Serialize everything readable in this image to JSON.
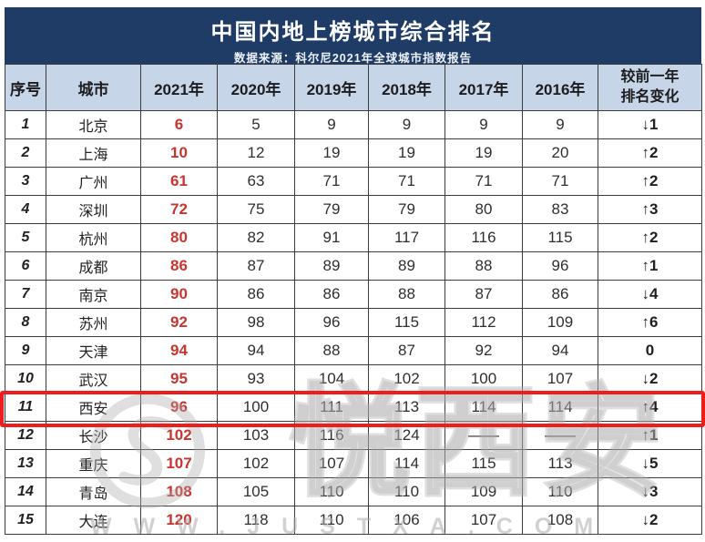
{
  "header": {
    "title": "中国内地上榜城市综合排名",
    "subtitle": "数据来源：科尔尼2021年全球城市指数报告"
  },
  "chart_data": {
    "type": "table",
    "columns": [
      {
        "label": "序号"
      },
      {
        "label": "城市"
      },
      {
        "label": "2021年"
      },
      {
        "label": "2020年"
      },
      {
        "label": "2019年"
      },
      {
        "label": "2018年"
      },
      {
        "label": "2017年"
      },
      {
        "label": "2016年"
      },
      {
        "lines": [
          "较前一年",
          "排名变化"
        ]
      }
    ],
    "rows": [
      {
        "index": "1",
        "city": "北京",
        "values": [
          "6",
          "5",
          "9",
          "9",
          "9",
          "9"
        ],
        "change": "↓1",
        "highlighted": false
      },
      {
        "index": "2",
        "city": "上海",
        "values": [
          "10",
          "12",
          "19",
          "19",
          "19",
          "20"
        ],
        "change": "↑2",
        "highlighted": false
      },
      {
        "index": "3",
        "city": "广州",
        "values": [
          "61",
          "63",
          "71",
          "71",
          "71",
          "71"
        ],
        "change": "↑2",
        "highlighted": false
      },
      {
        "index": "4",
        "city": "深圳",
        "values": [
          "72",
          "75",
          "79",
          "79",
          "80",
          "83"
        ],
        "change": "↑3",
        "highlighted": false
      },
      {
        "index": "5",
        "city": "杭州",
        "values": [
          "80",
          "82",
          "91",
          "117",
          "116",
          "115"
        ],
        "change": "↑2",
        "highlighted": false
      },
      {
        "index": "6",
        "city": "成都",
        "values": [
          "86",
          "87",
          "89",
          "89",
          "88",
          "96"
        ],
        "change": "↑1",
        "highlighted": false
      },
      {
        "index": "7",
        "city": "南京",
        "values": [
          "90",
          "86",
          "86",
          "88",
          "87",
          "86"
        ],
        "change": "↓4",
        "highlighted": false
      },
      {
        "index": "8",
        "city": "苏州",
        "values": [
          "92",
          "98",
          "96",
          "115",
          "112",
          "109"
        ],
        "change": "↑6",
        "highlighted": false
      },
      {
        "index": "9",
        "city": "天津",
        "values": [
          "94",
          "94",
          "88",
          "87",
          "92",
          "94"
        ],
        "change": "0",
        "highlighted": false
      },
      {
        "index": "10",
        "city": "武汉",
        "values": [
          "95",
          "93",
          "104",
          "102",
          "100",
          "107"
        ],
        "change": "↓2",
        "highlighted": false
      },
      {
        "index": "11",
        "city": "西安",
        "values": [
          "96",
          "100",
          "111",
          "113",
          "114",
          "114"
        ],
        "change": "↑4",
        "highlighted": true
      },
      {
        "index": "12",
        "city": "长沙",
        "values": [
          "102",
          "103",
          "116",
          "124",
          "——",
          "——"
        ],
        "change": "↑1",
        "highlighted": false
      },
      {
        "index": "13",
        "city": "重庆",
        "values": [
          "107",
          "102",
          "107",
          "114",
          "115",
          "113"
        ],
        "change": "↓5",
        "highlighted": false
      },
      {
        "index": "14",
        "city": "青岛",
        "values": [
          "108",
          "105",
          "110",
          "110",
          "109",
          "110"
        ],
        "change": "↓3",
        "highlighted": false
      },
      {
        "index": "15",
        "city": "大连",
        "values": [
          "120",
          "118",
          "110",
          "106",
          "107",
          "108"
        ],
        "change": "↓2",
        "highlighted": false
      }
    ]
  },
  "watermark": {
    "brand": "悦西安",
    "url": "WWW.JUSTXA.COM"
  },
  "icons": {
    "up-arrow": "↑",
    "down-arrow": "↓"
  },
  "colors": {
    "banner_bg": "#1e3c66",
    "banner_text": "#ffffff",
    "column_header_bg": "#c7d5e8",
    "rank_2021_red": "#c9342f",
    "highlight_border_red": "#ee1d1d",
    "table_border": "#3c3c3c",
    "body_text": "#2f2f2f",
    "watermark_gray": "#acacac"
  }
}
